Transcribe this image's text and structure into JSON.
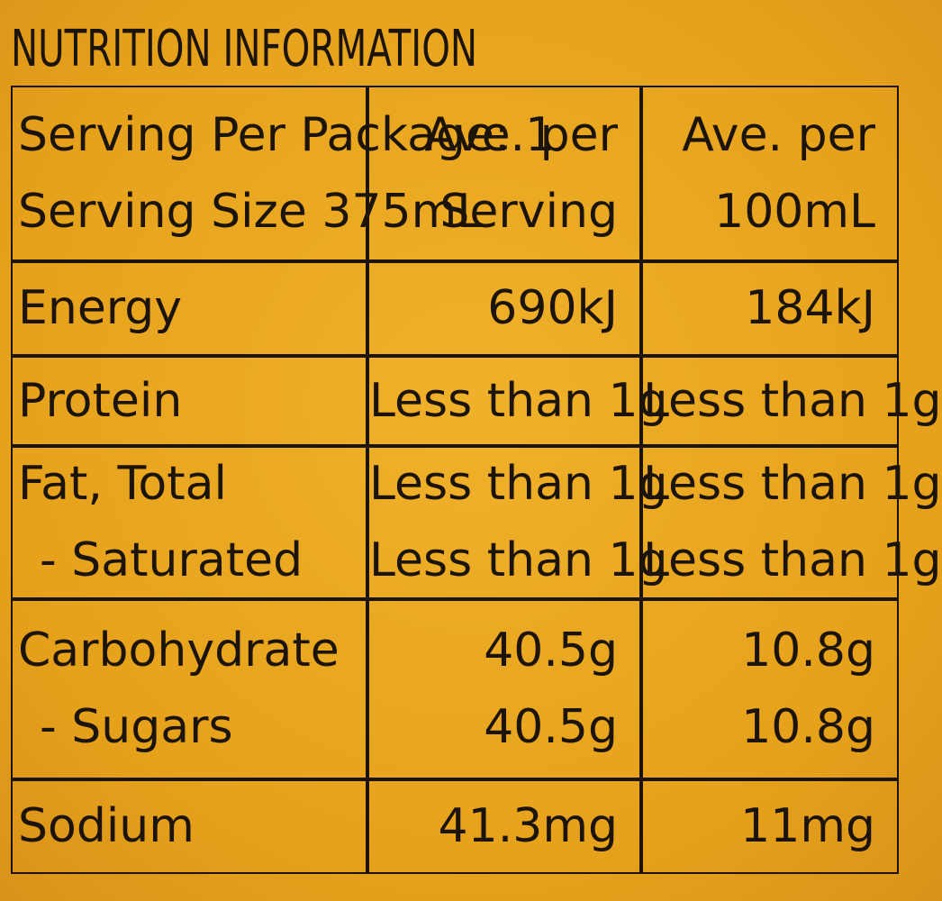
{
  "title": "NUTRITION INFORMATION",
  "table": {
    "header": [
      [
        "Serving Per Package: 1",
        "Serving Size 375mL"
      ],
      [
        "Ave. per",
        "Serving"
      ],
      [
        "Ave. per",
        "100mL"
      ]
    ],
    "rows": [
      [
        [
          "Energy"
        ],
        [
          "690kJ"
        ],
        [
          "184kJ"
        ]
      ],
      [
        [
          "Protein"
        ],
        [
          "Less than 1g"
        ],
        [
          "Less than 1g"
        ]
      ],
      [
        [
          "Fat, Total",
          "- Saturated"
        ],
        [
          "Less than 1g",
          "Less than 1g"
        ],
        [
          "Less than 1g",
          "Less than 1g"
        ]
      ],
      [
        [
          "Carbohydrate",
          "- Sugars"
        ],
        [
          "40.5g",
          "40.5g"
        ],
        [
          "10.8g",
          "10.8g"
        ]
      ],
      [
        [
          "Sodium"
        ],
        [
          "41.3mg"
        ],
        [
          "11mg"
        ]
      ]
    ]
  }
}
